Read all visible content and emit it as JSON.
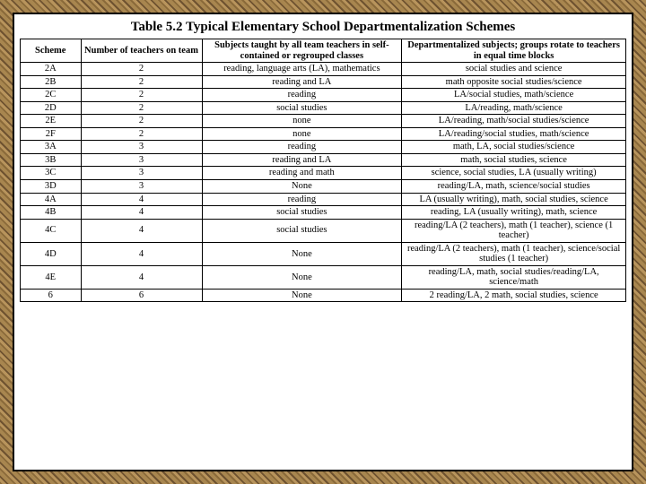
{
  "title": "Table 5.2 Typical Elementary School Departmentalization Schemes",
  "columns": [
    "Scheme",
    "Number of teachers on team",
    "Subjects taught by all team teachers in self-contained or regrouped classes",
    "Departmentalized subjects; groups rotate to teachers in equal time blocks"
  ],
  "rows": [
    {
      "scheme": "2A",
      "teachers": "2",
      "subjects": "reading, language arts (LA), mathematics",
      "dept": "social studies and science"
    },
    {
      "scheme": "2B",
      "teachers": "2",
      "subjects": "reading and LA",
      "dept": "math opposite social studies/science"
    },
    {
      "scheme": "2C",
      "teachers": "2",
      "subjects": "reading",
      "dept": "LA/social studies, math/science"
    },
    {
      "scheme": "2D",
      "teachers": "2",
      "subjects": "social studies",
      "dept": "LA/reading, math/science"
    },
    {
      "scheme": "2E",
      "teachers": "2",
      "subjects": "none",
      "dept": "LA/reading, math/social studies/science"
    },
    {
      "scheme": "2F",
      "teachers": "2",
      "subjects": "none",
      "dept": "LA/reading/social studies, math/science"
    },
    {
      "scheme": "3A",
      "teachers": "3",
      "subjects": "reading",
      "dept": "math, LA, social studies/science"
    },
    {
      "scheme": "3B",
      "teachers": "3",
      "subjects": "reading and LA",
      "dept": "math, social studies, science"
    },
    {
      "scheme": "3C",
      "teachers": "3",
      "subjects": "reading and math",
      "dept": "science, social studies, LA (usually writing)"
    },
    {
      "scheme": "3D",
      "teachers": "3",
      "subjects": "None",
      "dept": "reading/LA, math, science/social studies"
    },
    {
      "scheme": "4A",
      "teachers": "4",
      "subjects": "reading",
      "dept": "LA (usually writing), math, social studies, science"
    },
    {
      "scheme": "4B",
      "teachers": "4",
      "subjects": "social studies",
      "dept": "reading, LA (usually writing), math, science"
    },
    {
      "scheme": "4C",
      "teachers": "4",
      "subjects": "social studies",
      "dept": "reading/LA (2 teachers), math (1 teacher), science (1 teacher)"
    },
    {
      "scheme": "4D",
      "teachers": "4",
      "subjects": "None",
      "dept": "reading/LA (2 teachers), math (1 teacher), science/social studies (1 teacher)"
    },
    {
      "scheme": "4E",
      "teachers": "4",
      "subjects": "None",
      "dept": "reading/LA, math, social studies/reading/LA, science/math"
    },
    {
      "scheme": "6",
      "teachers": "6",
      "subjects": "None",
      "dept": "2 reading/LA, 2 math, social studies, science"
    }
  ]
}
